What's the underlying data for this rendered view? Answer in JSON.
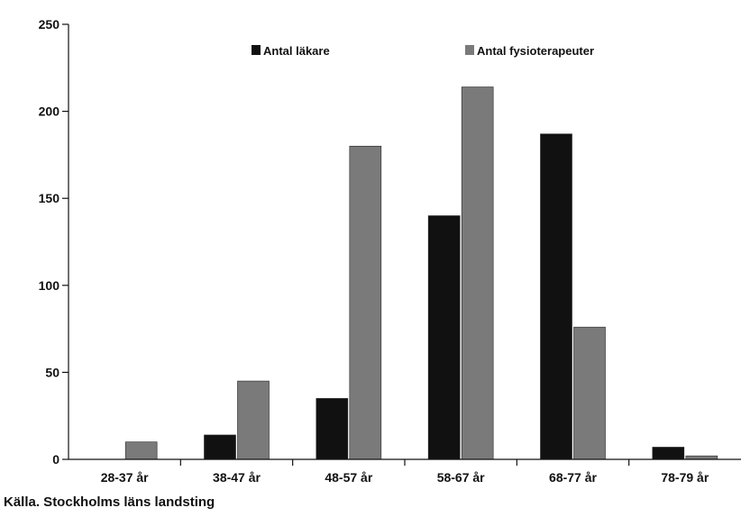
{
  "chart_data": {
    "type": "bar",
    "categories": [
      "28-37 år",
      "38-47 år",
      "48-57 år",
      "58-67 år",
      "68-77 år",
      "78-79 år"
    ],
    "series": [
      {
        "name": "Antal läkare",
        "color": "#111111",
        "values": [
          0,
          14,
          35,
          140,
          187,
          7
        ]
      },
      {
        "name": "Antal fysioterapeuter",
        "color": "#7a7a7a",
        "values": [
          10,
          45,
          180,
          214,
          76,
          2
        ]
      }
    ],
    "yticks": [
      "0",
      "50",
      "100",
      "150",
      "200",
      "250"
    ],
    "ylim": [
      0,
      250
    ],
    "grid": false,
    "legend_position": "top"
  },
  "source": "Källa. Stockholms läns landsting"
}
